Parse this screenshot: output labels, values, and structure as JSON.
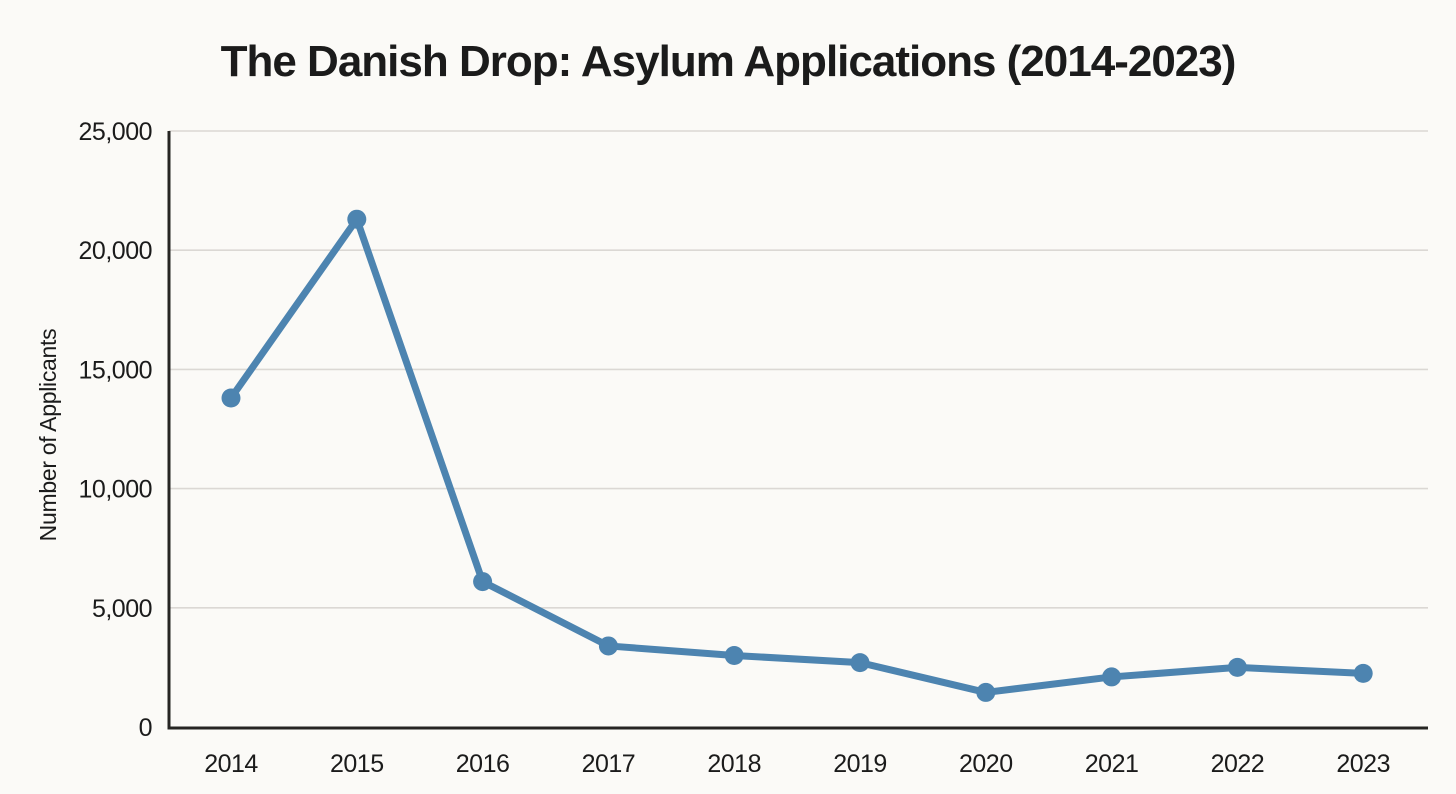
{
  "figure": {
    "background_color": "#fbfaf7"
  },
  "chart_data": {
    "type": "line",
    "title": "The Danish Drop: Asylum Applications (2014-2023)",
    "xlabel": "",
    "ylabel": "Number of Applicants",
    "x": [
      "2014",
      "2015",
      "2016",
      "2017",
      "2018",
      "2019",
      "2020",
      "2021",
      "2022",
      "2023"
    ],
    "values": [
      13800,
      21300,
      6100,
      3400,
      3000,
      2700,
      1450,
      2100,
      2500,
      2250
    ],
    "ylim": [
      0,
      25000
    ],
    "y_ticks": [
      0,
      5000,
      10000,
      15000,
      20000,
      25000
    ],
    "y_tick_labels": [
      "0",
      "5,000",
      "10,000",
      "15,000",
      "20,000",
      "25,000"
    ],
    "grid": "horizontal",
    "legend": "none",
    "marker": "circle",
    "line_color": "#4d84b0",
    "grid_color": "#dbd8d4",
    "axis_color": "#262523",
    "text_color": "#1b1b1b"
  }
}
